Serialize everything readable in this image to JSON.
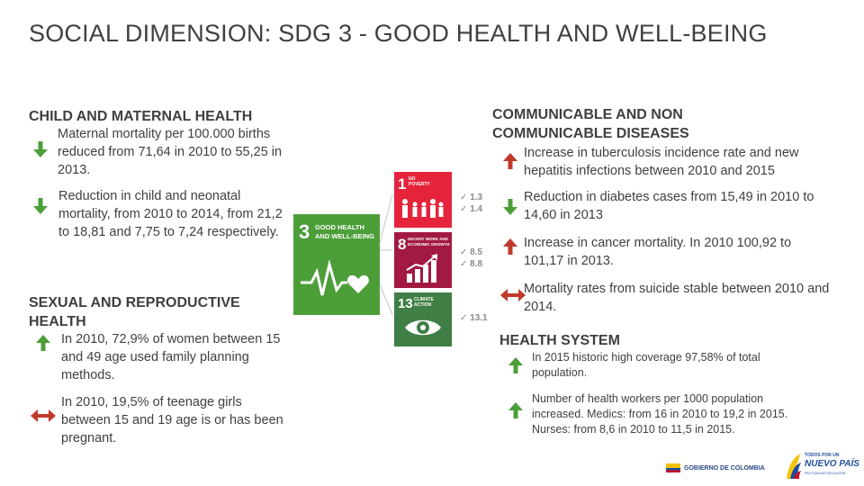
{
  "title": "SOCIAL DIMENSION: SDG 3 - GOOD HEALTH AND WELL-BEING",
  "left": {
    "child_maternal": {
      "heading": "CHILD AND MATERNAL HEALTH",
      "items": [
        {
          "text": "Maternal mortality per 100.000 births reduced from 71,64 in 2010 to 55,25 in 2013.",
          "trend": "down"
        },
        {
          "text": "Reduction in child and neonatal mortality, from 2010 to 2014, from 21,2 to 18,81 and 7,75 to 7,24 respectively.",
          "trend": "down"
        }
      ]
    },
    "sexual_reproductive": {
      "heading": "SEXUAL AND REPRODUCTIVE HEALTH",
      "items": [
        {
          "text": "In 2010, 72,9% of women between 15 and 49 age used family planning methods.",
          "trend": "up"
        },
        {
          "text": "In 2010, 19,5% of teenage girls between 15 and 19 age is or has been pregnant.",
          "trend": "stable"
        }
      ]
    }
  },
  "right": {
    "communicable": {
      "heading": "COMMUNICABLE AND NON COMMUNICABLE DISEASES",
      "items": [
        {
          "text": "Increase in tuberculosis incidence rate and new hepatitis infections between 2010 and  2015",
          "trend": "increase"
        },
        {
          "text": "Reduction in diabetes cases from 15,49 in 2010 to 14,60 in 2013",
          "trend": "down"
        },
        {
          "text": "Increase in cancer mortality. In 2010 100,92 to 101,17 in 2013.",
          "trend": "increase"
        },
        {
          "text": "Mortality rates from suicide stable between 2010 and 2014.",
          "trend": "stable"
        }
      ]
    },
    "health_system": {
      "heading": "HEALTH SYSTEM",
      "items": [
        {
          "text": "In 2015 historic high coverage 97,58% of total population.",
          "trend": "up"
        },
        {
          "text": "Number of health workers per 1000 population increased. Medics: from 16 in 2010 to 19,2 in 2015. Nurses: from 8,6 in 2010 to 11,5 in 2015.",
          "trend": "up"
        }
      ]
    }
  },
  "sdg": {
    "main": {
      "number": "3",
      "line1": "GOOD HEALTH",
      "line2": "AND WELL-BEING",
      "color": "#4c9f38"
    },
    "tiles": [
      {
        "number": "1",
        "line1": "NO",
        "line2": "POVERTY",
        "color": "#e5243b",
        "targets": [
          "✓ 1.3",
          "✓ 1.4"
        ]
      },
      {
        "number": "8",
        "line1": "DECENT WORK AND",
        "line2": "ECONOMIC GROWTH",
        "color": "#a21942",
        "targets": [
          "✓ 8.5",
          "✓ 8.8"
        ]
      },
      {
        "number": "13",
        "line1": "CLIMATE",
        "line2": "ACTION",
        "color": "#3f7e44",
        "targets": [
          "✓ 13.1"
        ]
      }
    ]
  },
  "logos": {
    "gov": "GOBIERNO DE COLOMBIA",
    "todos_line1": "TODOS POR UN",
    "todos_line2": "NUEVO PAÍS",
    "todos_line3": "PAZ  EQUIDAD  EDUCACIÓN"
  },
  "colors": {
    "down": "#4c9f38",
    "up": "#4c9f38",
    "increase": "#c0392b",
    "stable": "#c0392b"
  }
}
